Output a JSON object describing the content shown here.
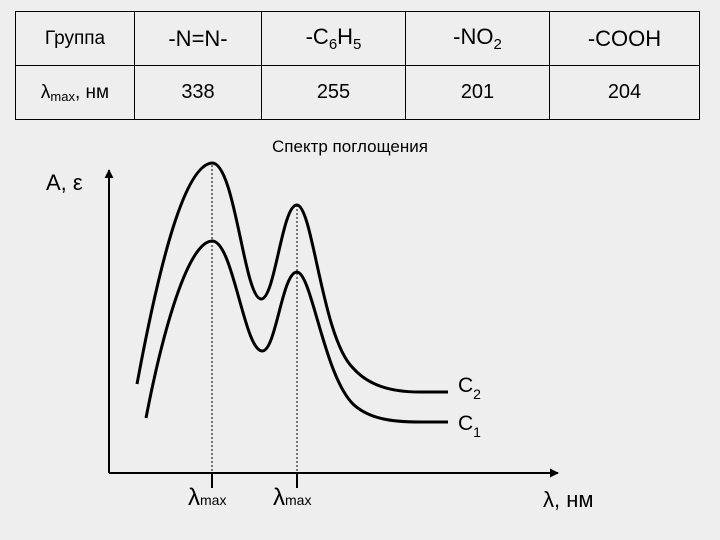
{
  "table": {
    "row1": {
      "label": "Группа",
      "groups": [
        {
          "main": "-N=N-",
          "sub": "",
          "tail": ""
        },
        {
          "main": "-C",
          "sub": "6",
          "tail": "H",
          "sub2": "5"
        },
        {
          "main": "-NO",
          "sub": "2",
          "tail": ""
        },
        {
          "main": "-COOH",
          "sub": "",
          "tail": ""
        }
      ]
    },
    "row2": {
      "label_symbol": "λ",
      "label_sub": "max",
      "label_unit": ", нм",
      "values": [
        "338",
        "255",
        "201",
        "204"
      ]
    }
  },
  "chart": {
    "title": "Спектр поглощения",
    "y_label": "A, ε",
    "x_label": "λ, нм",
    "peak_label_symbol": "λ",
    "peak_label_sub": "max",
    "curve_c2": {
      "letter": "C",
      "sub": "2"
    },
    "curve_c1": {
      "letter": "C",
      "sub": "1"
    }
  }
}
